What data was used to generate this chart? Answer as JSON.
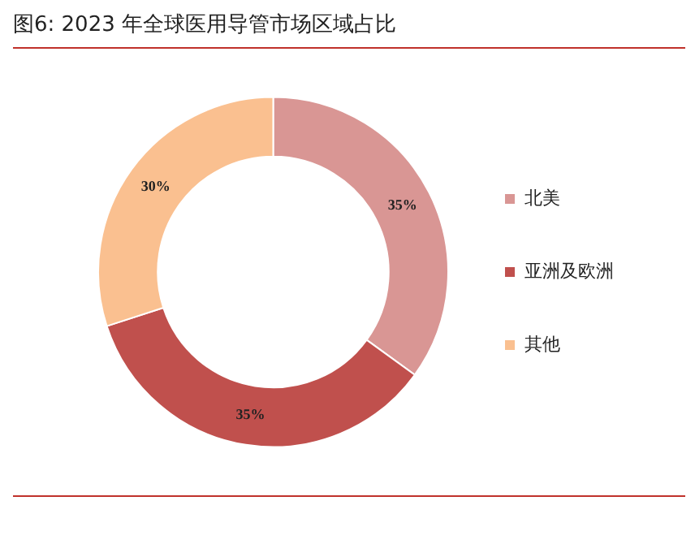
{
  "chart_data": {
    "type": "donut",
    "title": "图6: 2023 年全球医用导管市场区域占比",
    "categories": [
      "北美",
      "亚洲及欧洲",
      "其他"
    ],
    "values": [
      35,
      35,
      30
    ],
    "value_labels": [
      "35%",
      "35%",
      "30%"
    ],
    "colors": [
      "#d99694",
      "#c0504d",
      "#fac090"
    ],
    "legend": "right"
  }
}
